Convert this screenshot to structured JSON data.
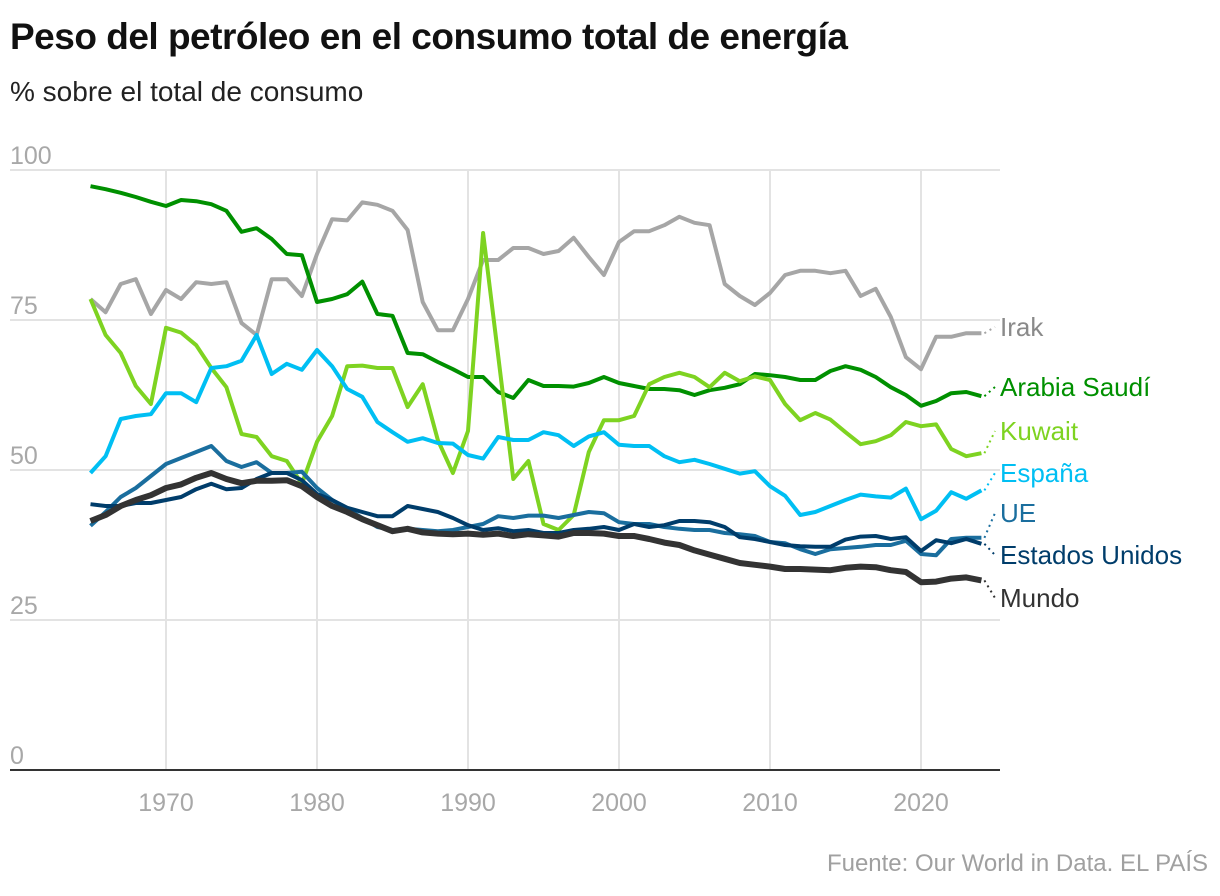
{
  "chart_data": {
    "type": "line",
    "title": "Peso del petróleo en el consumo total de energía",
    "subtitle": "% sobre el total de consumo",
    "source": "Fuente: Our World in Data. EL PAÍS",
    "xlim": [
      1965,
      2024
    ],
    "ylim": [
      0,
      100
    ],
    "x_ticks": [
      "1970",
      "1980",
      "1990",
      "2000",
      "2010",
      "2020"
    ],
    "y_ticks": [
      "0",
      "25",
      "50",
      "75",
      "100"
    ],
    "grid": true,
    "legend": "direct-labels-right",
    "x": [
      1965,
      1966,
      1967,
      1968,
      1969,
      1970,
      1971,
      1972,
      1973,
      1974,
      1975,
      1976,
      1977,
      1978,
      1979,
      1980,
      1981,
      1982,
      1983,
      1984,
      1985,
      1986,
      1987,
      1988,
      1989,
      1990,
      1991,
      1992,
      1993,
      1994,
      1995,
      1996,
      1997,
      1998,
      1999,
      2000,
      2001,
      2002,
      2003,
      2004,
      2005,
      2006,
      2007,
      2008,
      2009,
      2010,
      2011,
      2012,
      2013,
      2014,
      2015,
      2016,
      2017,
      2018,
      2019,
      2020,
      2021,
      2022,
      2023,
      2024
    ],
    "series": [
      {
        "name": "Irak",
        "color": "#a6a6a6",
        "values": [
          78.5,
          76.3,
          81,
          81.8,
          76,
          80,
          78.5,
          81.3,
          81,
          81.3,
          74.5,
          72.5,
          81.8,
          81.8,
          79,
          86,
          91.8,
          91.6,
          94.6,
          94.2,
          93.2,
          90,
          78,
          73.3,
          73.3,
          78.5,
          85,
          85,
          87,
          87,
          86,
          86.5,
          88.7,
          85.5,
          82.5,
          88,
          89.8,
          89.8,
          90.8,
          92.2,
          91.2,
          90.8,
          81,
          79,
          77.5,
          79.5,
          82.5,
          83.2,
          83.2,
          82.8,
          83.2,
          79,
          80.2,
          75.5,
          68.8,
          66.8,
          72.2,
          72.2,
          72.8,
          72.8
        ]
      },
      {
        "name": "Arabia Saudí",
        "color": "#009000",
        "values": [
          97.3,
          96.8,
          96.2,
          95.5,
          94.7,
          94,
          95,
          94.8,
          94.3,
          93.2,
          89.7,
          90.3,
          88.5,
          86,
          85.8,
          78,
          78.5,
          79.3,
          81.4,
          76,
          75.7,
          69.5,
          69.3,
          68,
          66.8,
          65.5,
          65.5,
          63,
          62,
          65,
          64,
          64,
          63.9,
          64.5,
          65.5,
          64.5,
          64,
          63.5,
          63.5,
          63.3,
          62.5,
          63.3,
          63.7,
          64.3,
          66,
          65.8,
          65.5,
          65,
          65,
          66.5,
          67.3,
          66.7,
          65.5,
          63.8,
          62.5,
          60.7,
          61.5,
          62.8,
          63,
          62.3
        ]
      },
      {
        "name": "Kuwait",
        "color": "#7ed321",
        "values": [
          78.5,
          72.5,
          69.5,
          64,
          61,
          73.7,
          72.9,
          70.8,
          67,
          63.8,
          56,
          55.5,
          52.3,
          51.5,
          47.7,
          54.7,
          59,
          67.3,
          67.4,
          67,
          67,
          60.5,
          64.3,
          55,
          49.5,
          56.5,
          89.5,
          69,
          48.5,
          51.5,
          41,
          40,
          42.5,
          53,
          58.3,
          58.3,
          59,
          64.3,
          65.5,
          66.2,
          65.5,
          63.8,
          66.2,
          64.8,
          65.6,
          65,
          61,
          58.3,
          59.5,
          58.4,
          56.3,
          54.3,
          54.8,
          55.8,
          58,
          57.3,
          57.6,
          53.5,
          52.3,
          52.8
        ]
      },
      {
        "name": "España",
        "color": "#00bff3",
        "values": [
          49.5,
          52.3,
          58.5,
          59,
          59.3,
          62.8,
          62.8,
          61.3,
          67,
          67.3,
          68.2,
          72.5,
          66,
          67.7,
          66.7,
          70,
          67.3,
          63.5,
          62.2,
          58,
          56.3,
          54.7,
          55.3,
          54.5,
          54.4,
          52.5,
          51.9,
          55.5,
          55,
          55,
          56.3,
          55.8,
          54,
          55.6,
          56.3,
          54.2,
          54,
          54,
          52.3,
          51.3,
          51.7,
          51,
          50.2,
          49.4,
          49.8,
          47.3,
          45.7,
          42.5,
          43,
          44,
          45,
          45.9,
          45.6,
          45.4,
          46.9,
          41.8,
          43.2,
          46.3,
          45.2,
          46.6
        ]
      },
      {
        "name": "UE",
        "color": "#1a6e9e",
        "values": [
          40.7,
          43,
          45.5,
          47,
          49,
          51,
          52,
          53,
          54,
          51.5,
          50.5,
          51.3,
          49.5,
          49.5,
          49.7,
          47,
          45,
          43.5,
          42,
          40.5,
          40,
          40.2,
          40,
          39.8,
          40,
          40.5,
          41,
          42.3,
          42,
          42.4,
          42.4,
          42,
          42.5,
          43,
          42.8,
          41.3,
          41,
          41,
          40.5,
          40.2,
          40,
          40,
          39.5,
          39.3,
          39,
          38,
          37.8,
          36.8,
          36,
          36.8,
          37,
          37.2,
          37.5,
          37.5,
          38.2,
          36,
          35.8,
          38.5,
          38.7,
          38.7
        ]
      },
      {
        "name": "Estados Unidos",
        "color": "#003d6b",
        "values": [
          44.3,
          44,
          44,
          44.5,
          44.5,
          45,
          45.5,
          46.8,
          47.7,
          46.8,
          47,
          48.5,
          49.5,
          49.5,
          48.3,
          46,
          45,
          43.7,
          43,
          42.3,
          42.3,
          44,
          43.5,
          43,
          42,
          40.8,
          40,
          40.3,
          39.8,
          40,
          39.5,
          39.5,
          40,
          40.2,
          40.5,
          40,
          41,
          40.5,
          40.8,
          41.5,
          41.5,
          41.3,
          40.5,
          38.8,
          38.5,
          38,
          37.5,
          37.3,
          37.2,
          37.2,
          38.4,
          38.9,
          39,
          38.5,
          38.8,
          36.5,
          38.3,
          37.8,
          38.5,
          37.7
        ]
      },
      {
        "name": "Mundo",
        "color": "#333333",
        "values": [
          41.5,
          42.5,
          44,
          45,
          45.8,
          47,
          47.6,
          48.7,
          49.5,
          48.5,
          47.8,
          48.2,
          48.2,
          48.3,
          47.3,
          45.5,
          44,
          43,
          41.8,
          40.8,
          39.8,
          40.2,
          39.6,
          39.4,
          39.3,
          39.4,
          39.2,
          39.4,
          39,
          39.3,
          39.1,
          38.9,
          39.5,
          39.5,
          39.4,
          39,
          39,
          38.5,
          37.9,
          37.5,
          36.6,
          35.9,
          35.2,
          34.5,
          34.2,
          33.9,
          33.5,
          33.5,
          33.4,
          33.3,
          33.7,
          33.9,
          33.8,
          33.3,
          33,
          31.3,
          31.4,
          31.9,
          32.1,
          31.6
        ]
      }
    ]
  }
}
